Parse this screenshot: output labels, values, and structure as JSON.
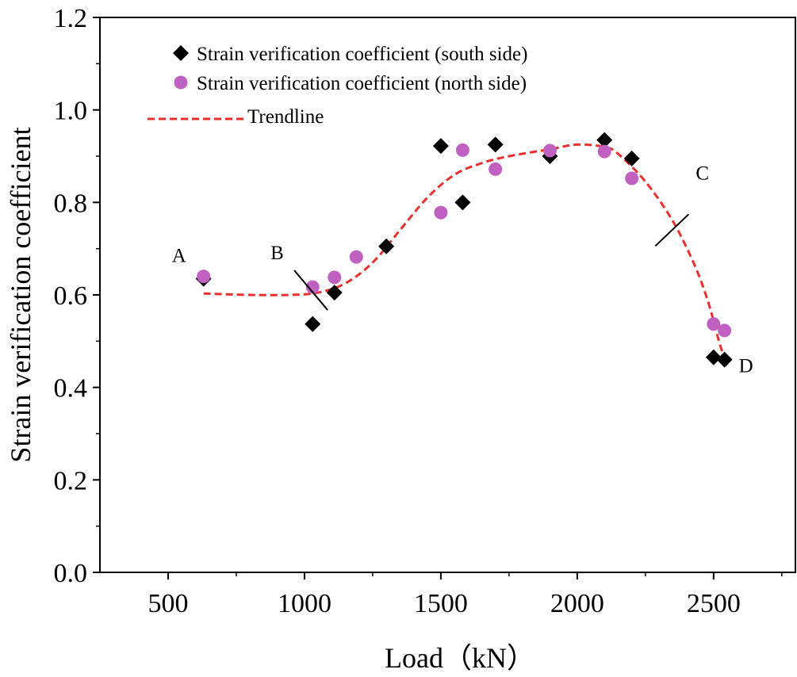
{
  "chart_data": {
    "type": "scatter",
    "xlabel": "Load（kN）",
    "ylabel": "Strain verification coefficient",
    "xlim": [
      250,
      2800
    ],
    "ylim": [
      0,
      1.2
    ],
    "xticks": [
      "500",
      "1000",
      "1500",
      "2000",
      "2500"
    ],
    "yticks": [
      "0.0",
      "0.2",
      "0.4",
      "0.6",
      "0.8",
      "1.0",
      "1.2"
    ],
    "grid": false,
    "legend_position": "top-left",
    "series": [
      {
        "name": "Strain verification coefficient (south side)",
        "marker": "diamond",
        "color": "#000000",
        "points": [
          [
            630,
            0.635
          ],
          [
            1030,
            0.537
          ],
          [
            1110,
            0.605
          ],
          [
            1300,
            0.705
          ],
          [
            1500,
            0.922
          ],
          [
            1580,
            0.8
          ],
          [
            1700,
            0.925
          ],
          [
            1900,
            0.9
          ],
          [
            2100,
            0.935
          ],
          [
            2200,
            0.895
          ],
          [
            2500,
            0.465
          ],
          [
            2540,
            0.46
          ]
        ]
      },
      {
        "name": "Strain verification coefficient (north side)",
        "marker": "circle",
        "color": "#c060c0",
        "points": [
          [
            630,
            0.64
          ],
          [
            1030,
            0.617
          ],
          [
            1110,
            0.638
          ],
          [
            1190,
            0.682
          ],
          [
            1500,
            0.778
          ],
          [
            1580,
            0.913
          ],
          [
            1700,
            0.872
          ],
          [
            1900,
            0.912
          ],
          [
            2100,
            0.91
          ],
          [
            2200,
            0.852
          ],
          [
            2500,
            0.537
          ],
          [
            2540,
            0.523
          ]
        ]
      },
      {
        "name": "Trendline",
        "style": "dashed",
        "color": "#e8302e",
        "points": [
          [
            630,
            0.603
          ],
          [
            800,
            0.6
          ],
          [
            950,
            0.6
          ],
          [
            1050,
            0.605
          ],
          [
            1150,
            0.625
          ],
          [
            1250,
            0.67
          ],
          [
            1350,
            0.74
          ],
          [
            1450,
            0.81
          ],
          [
            1550,
            0.86
          ],
          [
            1650,
            0.885
          ],
          [
            1750,
            0.9
          ],
          [
            1900,
            0.915
          ],
          [
            2000,
            0.925
          ],
          [
            2100,
            0.92
          ],
          [
            2150,
            0.905
          ],
          [
            2250,
            0.845
          ],
          [
            2350,
            0.76
          ],
          [
            2430,
            0.665
          ],
          [
            2480,
            0.585
          ],
          [
            2510,
            0.52
          ],
          [
            2530,
            0.48
          ],
          [
            2545,
            0.455
          ]
        ]
      }
    ],
    "annotations": [
      {
        "label": "A",
        "x": 630,
        "y": 0.64
      },
      {
        "label": "B",
        "x": 1050,
        "y": 0.605
      },
      {
        "label": "C",
        "x": 2330,
        "y": 0.74
      },
      {
        "label": "D",
        "x": 2540,
        "y": 0.46
      }
    ]
  }
}
